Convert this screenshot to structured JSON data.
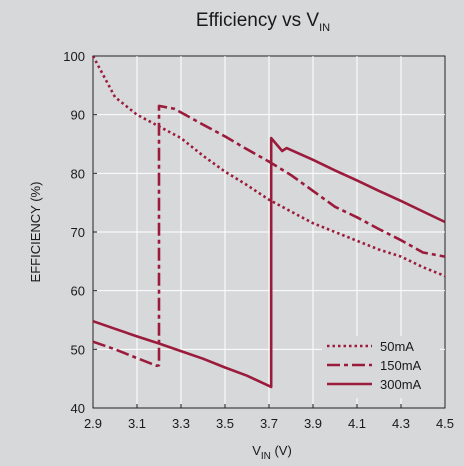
{
  "chart_data": {
    "type": "line",
    "title": "Efficiency vs V",
    "title_sub": "IN",
    "xlabel": "V",
    "xlabel_sub": "IN",
    "xlabel_unit": " (V)",
    "ylabel": "EFFICIENCY (%)",
    "xlim": [
      2.9,
      4.5
    ],
    "ylim": [
      40,
      100
    ],
    "xticks": [
      "2.9",
      "3.1",
      "3.3",
      "3.5",
      "3.7",
      "3.9",
      "4.1",
      "4.3",
      "4.5"
    ],
    "yticks": [
      "40",
      "50",
      "60",
      "70",
      "80",
      "90",
      "100"
    ],
    "grid": true,
    "legend_position": "bottom-right",
    "line_color": "#9b1b3c",
    "series": [
      {
        "name": "50mA",
        "style": "dotted",
        "points": [
          [
            2.9,
            100
          ],
          [
            2.95,
            96.5
          ],
          [
            3.0,
            93
          ],
          [
            3.1,
            90
          ],
          [
            3.2,
            88
          ],
          [
            3.3,
            86
          ],
          [
            3.4,
            83
          ],
          [
            3.5,
            80.3
          ],
          [
            3.6,
            78
          ],
          [
            3.7,
            75.5
          ],
          [
            3.8,
            73.5
          ],
          [
            3.9,
            71.5
          ],
          [
            4.0,
            70
          ],
          [
            4.1,
            68.5
          ],
          [
            4.2,
            67
          ],
          [
            4.3,
            65.8
          ],
          [
            4.4,
            64
          ],
          [
            4.5,
            62.5
          ]
        ]
      },
      {
        "name": "150mA",
        "style": "dashdot",
        "points": [
          [
            2.9,
            51.3
          ],
          [
            3.0,
            50
          ],
          [
            3.1,
            48.5
          ],
          [
            3.19,
            47.2
          ],
          [
            3.2,
            47.3
          ],
          [
            3.2,
            91.5
          ],
          [
            3.27,
            91
          ],
          [
            3.4,
            88.3
          ],
          [
            3.5,
            86.3
          ],
          [
            3.6,
            84.1
          ],
          [
            3.7,
            82
          ],
          [
            3.8,
            79.7
          ],
          [
            3.9,
            77
          ],
          [
            4.0,
            74.3
          ],
          [
            4.1,
            72.5
          ],
          [
            4.2,
            70.5
          ],
          [
            4.3,
            68.6
          ],
          [
            4.4,
            66.5
          ],
          [
            4.5,
            65.8
          ]
        ]
      },
      {
        "name": "300mA",
        "style": "solid",
        "points": [
          [
            2.9,
            54.8
          ],
          [
            3.0,
            53.5
          ],
          [
            3.1,
            52.2
          ],
          [
            3.2,
            51
          ],
          [
            3.3,
            49.7
          ],
          [
            3.4,
            48.4
          ],
          [
            3.5,
            46.9
          ],
          [
            3.6,
            45.5
          ],
          [
            3.71,
            43.6
          ],
          [
            3.71,
            86
          ],
          [
            3.76,
            83.8
          ],
          [
            3.78,
            84.3
          ],
          [
            3.9,
            82.3
          ],
          [
            4.0,
            80.5
          ],
          [
            4.1,
            78.8
          ],
          [
            4.2,
            77
          ],
          [
            4.3,
            75.3
          ],
          [
            4.4,
            73.5
          ],
          [
            4.5,
            71.7
          ]
        ]
      }
    ]
  }
}
